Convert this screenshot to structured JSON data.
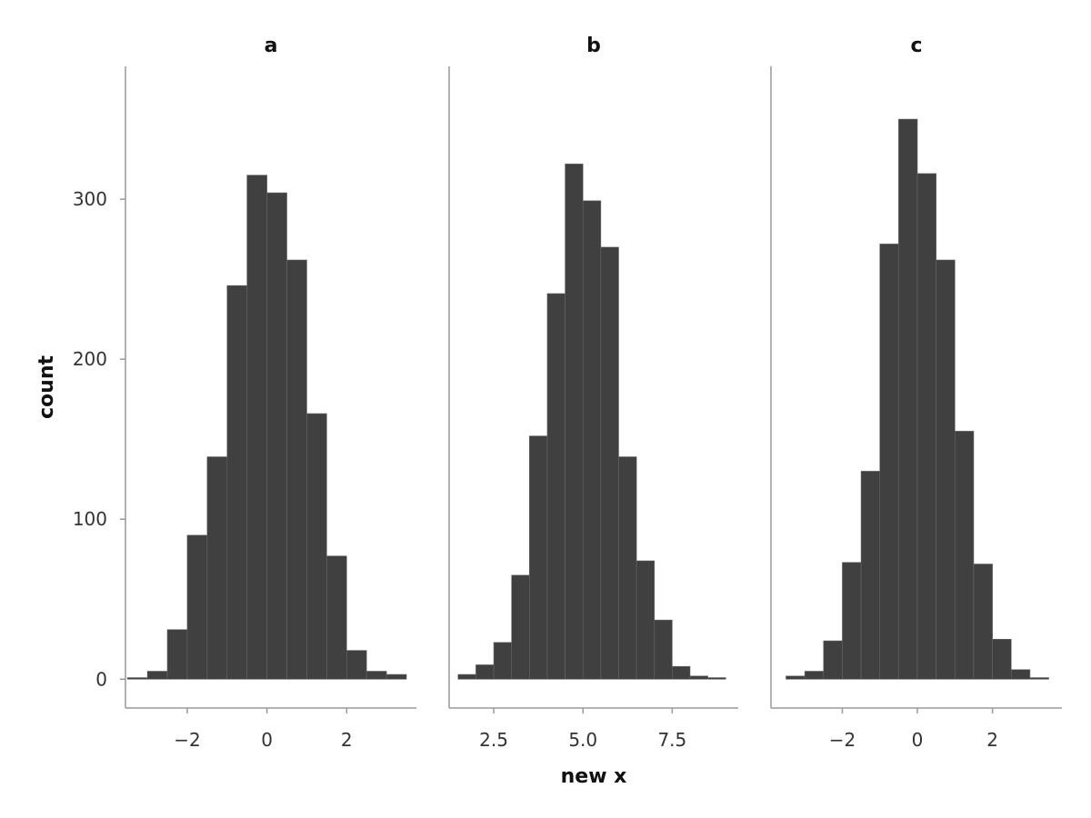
{
  "chart_data": {
    "type": "bar",
    "xlabel": "new x",
    "ylabel": "count",
    "ylim": [
      -18,
      383
    ],
    "y_ticks": [
      0,
      100,
      200,
      300
    ],
    "bar_color": "#404040",
    "axis_color": "#999999",
    "panels": [
      {
        "title": "a",
        "xlim": [
          -3.55,
          3.75
        ],
        "x_ticks": [
          {
            "value": -2,
            "label": "−2"
          },
          {
            "value": 0,
            "label": "0"
          },
          {
            "value": 2,
            "label": "2"
          }
        ],
        "bins": [
          {
            "x0": -3.5,
            "x1": -3.0,
            "count": 1
          },
          {
            "x0": -3.0,
            "x1": -2.5,
            "count": 5
          },
          {
            "x0": -2.5,
            "x1": -2.0,
            "count": 31
          },
          {
            "x0": -2.0,
            "x1": -1.5,
            "count": 90
          },
          {
            "x0": -1.5,
            "x1": -1.0,
            "count": 139
          },
          {
            "x0": -1.0,
            "x1": -0.5,
            "count": 246
          },
          {
            "x0": -0.5,
            "x1": 0.0,
            "count": 315
          },
          {
            "x0": 0.0,
            "x1": 0.5,
            "count": 304
          },
          {
            "x0": 0.5,
            "x1": 1.0,
            "count": 262
          },
          {
            "x0": 1.0,
            "x1": 1.5,
            "count": 166
          },
          {
            "x0": 1.5,
            "x1": 2.0,
            "count": 77
          },
          {
            "x0": 2.0,
            "x1": 2.5,
            "count": 18
          },
          {
            "x0": 2.5,
            "x1": 3.0,
            "count": 5
          },
          {
            "x0": 3.0,
            "x1": 3.5,
            "count": 3
          }
        ]
      },
      {
        "title": "b",
        "xlim": [
          1.25,
          9.35
        ],
        "x_ticks": [
          {
            "value": 2.5,
            "label": "2.5"
          },
          {
            "value": 5.0,
            "label": "5.0"
          },
          {
            "value": 7.5,
            "label": "7.5"
          }
        ],
        "bins": [
          {
            "x0": 1.5,
            "x1": 2.0,
            "count": 3
          },
          {
            "x0": 2.0,
            "x1": 2.5,
            "count": 9
          },
          {
            "x0": 2.5,
            "x1": 3.0,
            "count": 23
          },
          {
            "x0": 3.0,
            "x1": 3.5,
            "count": 65
          },
          {
            "x0": 3.5,
            "x1": 4.0,
            "count": 152
          },
          {
            "x0": 4.0,
            "x1": 4.5,
            "count": 241
          },
          {
            "x0": 4.5,
            "x1": 5.0,
            "count": 322
          },
          {
            "x0": 5.0,
            "x1": 5.5,
            "count": 299
          },
          {
            "x0": 5.5,
            "x1": 6.0,
            "count": 270
          },
          {
            "x0": 6.0,
            "x1": 6.5,
            "count": 139
          },
          {
            "x0": 6.5,
            "x1": 7.0,
            "count": 74
          },
          {
            "x0": 7.0,
            "x1": 7.5,
            "count": 37
          },
          {
            "x0": 7.5,
            "x1": 8.0,
            "count": 8
          },
          {
            "x0": 8.0,
            "x1": 8.5,
            "count": 2
          },
          {
            "x0": 8.5,
            "x1": 9.0,
            "count": 1
          }
        ]
      },
      {
        "title": "c",
        "xlim": [
          -3.9,
          3.85
        ],
        "x_ticks": [
          {
            "value": -2,
            "label": "−2"
          },
          {
            "value": 0,
            "label": "0"
          },
          {
            "value": 2,
            "label": "2"
          }
        ],
        "bins": [
          {
            "x0": -3.5,
            "x1": -3.0,
            "count": 2
          },
          {
            "x0": -3.0,
            "x1": -2.5,
            "count": 5
          },
          {
            "x0": -2.5,
            "x1": -2.0,
            "count": 24
          },
          {
            "x0": -2.0,
            "x1": -1.5,
            "count": 73
          },
          {
            "x0": -1.5,
            "x1": -1.0,
            "count": 130
          },
          {
            "x0": -1.0,
            "x1": -0.5,
            "count": 272
          },
          {
            "x0": -0.5,
            "x1": 0.0,
            "count": 350
          },
          {
            "x0": 0.0,
            "x1": 0.5,
            "count": 316
          },
          {
            "x0": 0.5,
            "x1": 1.0,
            "count": 262
          },
          {
            "x0": 1.0,
            "x1": 1.5,
            "count": 155
          },
          {
            "x0": 1.5,
            "x1": 2.0,
            "count": 72
          },
          {
            "x0": 2.0,
            "x1": 2.5,
            "count": 25
          },
          {
            "x0": 2.5,
            "x1": 3.0,
            "count": 6
          },
          {
            "x0": 3.0,
            "x1": 3.5,
            "count": 1
          }
        ]
      }
    ]
  }
}
